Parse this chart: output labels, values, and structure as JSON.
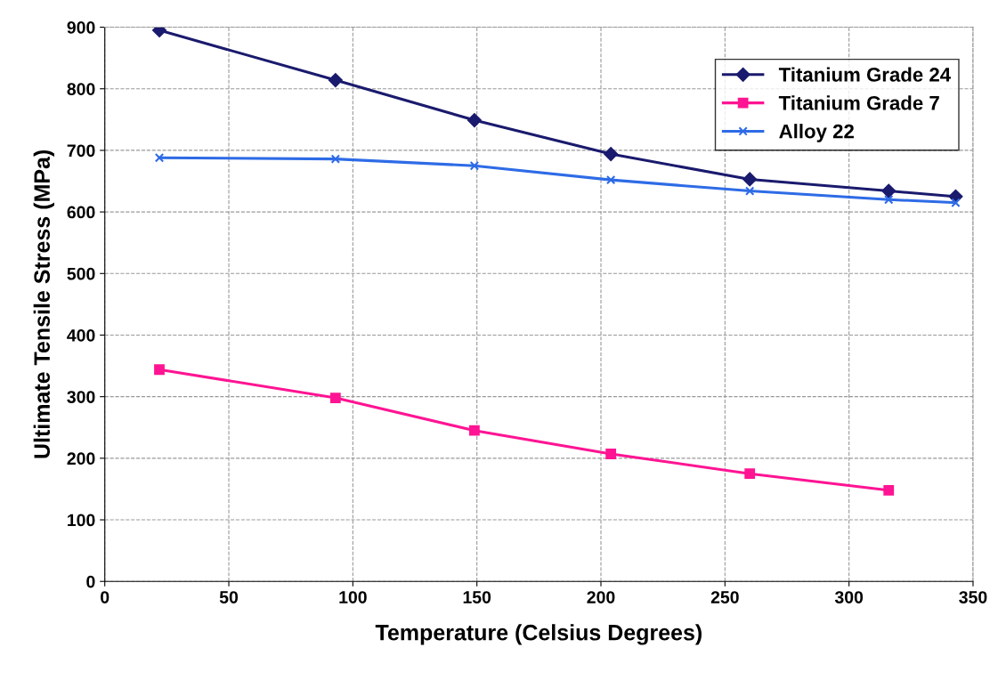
{
  "chart_data": {
    "type": "line",
    "xlabel": "Temperature (Celsius Degrees)",
    "ylabel": "Ultimate Tensile Stress (MPa)",
    "xlim": [
      0,
      350
    ],
    "xticks": [
      0,
      50,
      100,
      150,
      200,
      250,
      300,
      350
    ],
    "ylim": [
      0,
      900
    ],
    "yticks": [
      0,
      100,
      200,
      300,
      400,
      500,
      600,
      700,
      800,
      900
    ],
    "grid": true,
    "legend": "top right",
    "series": [
      {
        "name": "Titanium Grade 24",
        "color": "#1a1a6e",
        "marker": "diamond",
        "x": [
          22,
          93,
          149,
          204,
          260,
          316,
          343
        ],
        "values": [
          895,
          814,
          749,
          694,
          653,
          634,
          625
        ]
      },
      {
        "name": "Titanium Grade 7",
        "color": "#ff1493",
        "marker": "square",
        "x": [
          22,
          93,
          149,
          204,
          260,
          316
        ],
        "values": [
          344,
          298,
          245,
          207,
          175,
          148
        ]
      },
      {
        "name": "Alloy 22",
        "color": "#2e6be6",
        "marker": "cross",
        "x": [
          22,
          93,
          149,
          204,
          260,
          316,
          343
        ],
        "values": [
          688,
          686,
          675,
          652,
          634,
          620,
          615
        ]
      }
    ]
  }
}
